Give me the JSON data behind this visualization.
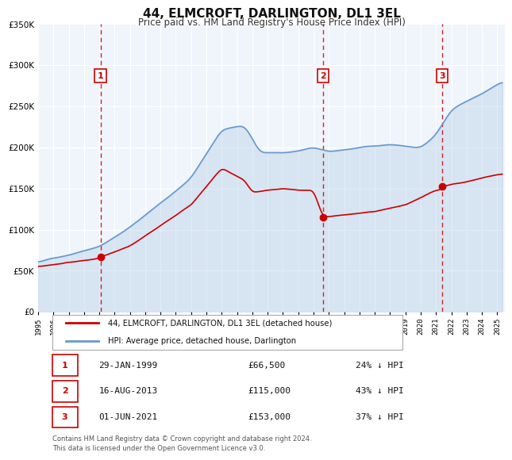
{
  "title": "44, ELMCROFT, DARLINGTON, DL1 3EL",
  "subtitle": "Price paid vs. HM Land Registry's House Price Index (HPI)",
  "legend_label_red": "44, ELMCROFT, DARLINGTON, DL1 3EL (detached house)",
  "legend_label_blue": "HPI: Average price, detached house, Darlington",
  "transactions": [
    {
      "num": 1,
      "date": "29-JAN-1999",
      "price": 66500,
      "pct": "24%",
      "year": 1999.08
    },
    {
      "num": 2,
      "date": "16-AUG-2013",
      "price": 115000,
      "pct": "43%",
      "year": 2013.62
    },
    {
      "num": 3,
      "date": "01-JUN-2021",
      "price": 153000,
      "pct": "37%",
      "year": 2021.42
    }
  ],
  "footnote1": "Contains HM Land Registry data © Crown copyright and database right 2024.",
  "footnote2": "This data is licensed under the Open Government Licence v3.0.",
  "ylim": [
    0,
    350000
  ],
  "yticks": [
    0,
    50000,
    100000,
    150000,
    200000,
    250000,
    300000,
    350000
  ],
  "xlim_start": 1995.0,
  "xlim_end": 2025.5,
  "xticks": [
    1995,
    1996,
    1997,
    1998,
    1999,
    2000,
    2001,
    2002,
    2003,
    2004,
    2005,
    2006,
    2007,
    2008,
    2009,
    2010,
    2011,
    2012,
    2013,
    2014,
    2015,
    2016,
    2017,
    2018,
    2019,
    2020,
    2021,
    2022,
    2023,
    2024,
    2025
  ],
  "red_color": "#cc0000",
  "blue_color": "#6699cc",
  "bg_color": "#dce9f5",
  "plot_bg": "#f0f5fb",
  "grid_color": "#ffffff",
  "vline_color": "#cc0000"
}
